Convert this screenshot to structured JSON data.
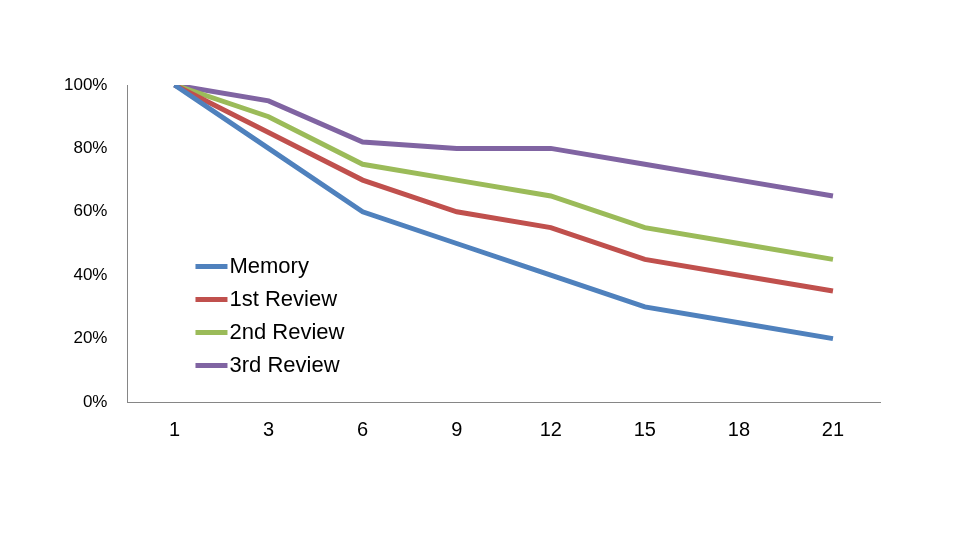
{
  "chart_data": {
    "type": "line",
    "categories": [
      "1",
      "3",
      "6",
      "9",
      "12",
      "15",
      "18",
      "21"
    ],
    "series": [
      {
        "name": "Memory",
        "color": "#4f81bd",
        "values": [
          100,
          80,
          60,
          50,
          40,
          30,
          25,
          20
        ]
      },
      {
        "name": "1st Review",
        "color": "#c0504d",
        "values": [
          100,
          85,
          70,
          60,
          55,
          45,
          40,
          35
        ]
      },
      {
        "name": "2nd Review",
        "color": "#9bbb59",
        "values": [
          100,
          90,
          75,
          70,
          65,
          55,
          50,
          45
        ]
      },
      {
        "name": "3rd Review",
        "color": "#8064a2",
        "values": [
          100,
          95,
          82,
          80,
          80,
          75,
          70,
          65
        ]
      }
    ],
    "ylim": [
      0,
      100
    ],
    "yticks": [
      {
        "value": 0,
        "label": "0%"
      },
      {
        "value": 20,
        "label": "20%"
      },
      {
        "value": 40,
        "label": "40%"
      },
      {
        "value": 60,
        "label": "60%"
      },
      {
        "value": 80,
        "label": "80%"
      },
      {
        "value": 100,
        "label": "100%"
      }
    ],
    "grid": false,
    "legend": "lower left"
  }
}
